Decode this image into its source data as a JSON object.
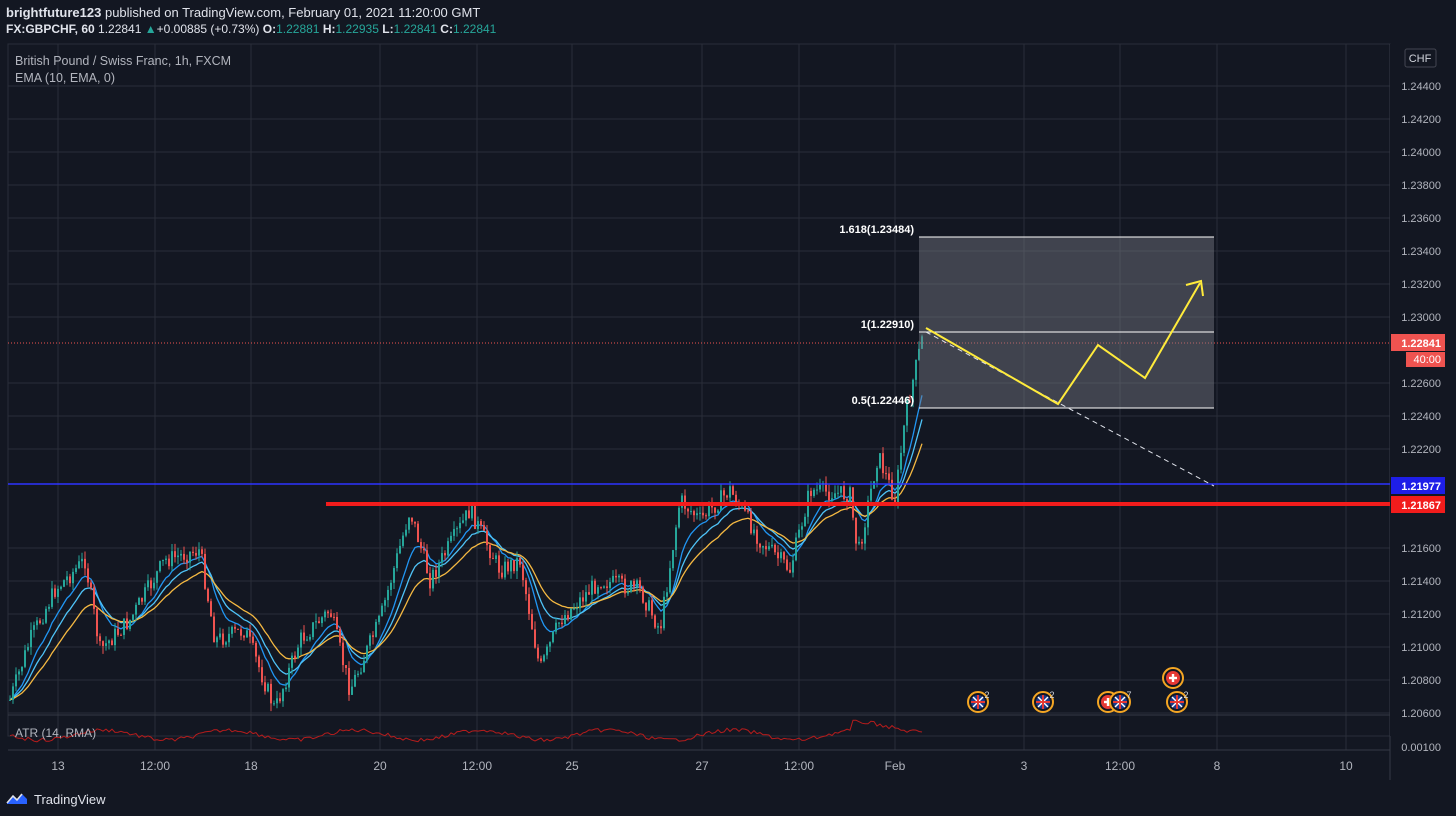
{
  "header": {
    "author": "brightfuture123",
    "published_text": "published on TradingView.com, February 01, 2021 11:20:00 GMT",
    "symbol": "FX:GBPCHF, 60",
    "last": "1.22841",
    "change": "+0.00885 (+0.73%)",
    "o_label": "O:",
    "o": "1.22881",
    "h_label": "H:",
    "h": "1.22935",
    "l_label": "L:",
    "l": "1.22841",
    "c_label": "C:",
    "c": "1.22841"
  },
  "legend": {
    "instrument": "British Pound / Swiss Franc, 1h, FXCM",
    "indicator": "EMA (10, EMA, 0)"
  },
  "atr_label": "ATR (14, RMA)",
  "footer": {
    "brand": "TradingView",
    "logo_icon": "tradingview-logo-icon"
  },
  "chart_data": {
    "type": "candlestick",
    "currency_label": "CHF",
    "y_ticks": [
      "1.24400",
      "1.24200",
      "1.24000",
      "1.23800",
      "1.23600",
      "1.23400",
      "1.23200",
      "1.23000",
      "1.22600",
      "1.22400",
      "1.22200",
      "1.21600",
      "1.21400",
      "1.21200",
      "1.21000",
      "1.20800",
      "1.20600"
    ],
    "atr_tick": "0.00100",
    "x_ticks": [
      "13",
      "12:00",
      "18",
      "20",
      "12:00",
      "25",
      "27",
      "12:00",
      "Feb",
      "3",
      "12:00",
      "8",
      "10"
    ],
    "price_markers": [
      {
        "value": "1.22841",
        "sub": "40:00",
        "color": "#ef5350"
      },
      {
        "value": "1.21977",
        "color": "#1e1ee8"
      },
      {
        "value": "1.21867",
        "color": "#f21c1c"
      }
    ],
    "horizontal_lines": [
      {
        "price": 1.21977,
        "color": "#2d34ff",
        "name": "blue-level"
      },
      {
        "price": 1.21867,
        "color": "#f21c1c",
        "name": "red-support"
      }
    ],
    "fib_levels": [
      {
        "label": "1.618(1.23484)",
        "price": 1.23484
      },
      {
        "label": "1(1.22910)",
        "price": 1.2291
      },
      {
        "label": "0.5(1.22446)",
        "price": 1.22446
      }
    ],
    "ylim": [
      1.206,
      1.246
    ],
    "grid": true,
    "event_badges": [
      {
        "icon": "gbp-flag-icon",
        "count": "2"
      },
      {
        "icon": "gbp-flag-icon",
        "count": "2"
      },
      {
        "icon": "chf-flag-icon",
        "count": "2"
      },
      {
        "icon": "gbp-flag-icon",
        "count": "7"
      },
      {
        "icon": "chf-flag-icon",
        "count": ""
      },
      {
        "icon": "gbp-flag-icon",
        "count": "2"
      }
    ],
    "colors": {
      "up": "#26a69a",
      "down": "#ef5350",
      "bg": "#131722",
      "grid": "#2a2e39",
      "projection": "#ffeb3b"
    }
  }
}
